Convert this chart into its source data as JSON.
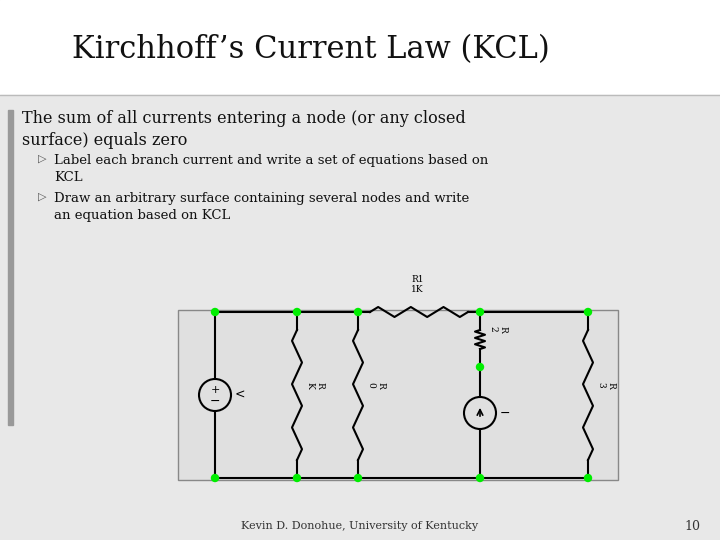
{
  "title": "Kirchhoff’s Current Law (KCL)",
  "body_text": "The sum of all currents entering a node (or any closed\nsurface) equals zero",
  "bullet1": "Label each branch current and write a set of equations based on\nKCL",
  "bullet2": "Draw an arbitrary surface containing several nodes and write\nan equation based on KCL",
  "footer": "Kevin D. Donohue, University of Kentucky",
  "page_number": "10",
  "bg_outer": "#d8d8d8",
  "bg_white": "#ffffff",
  "bg_content": "#e8e8e8",
  "bg_left_bar": "#c8c8c8",
  "node_color": "#00ee00",
  "wire_color": "#000000"
}
